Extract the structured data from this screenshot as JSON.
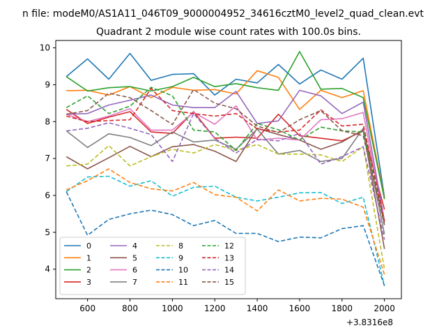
{
  "chart_data": {
    "type": "line",
    "suptitle": "n file: modeM0/AS1A11_046T09_9000004952_34616cztM0_level2_quad_clean.evt",
    "title": "Quadrant 2 module wise count rates with 100.0s bins.",
    "xlabel": "",
    "ylabel": "",
    "x_offset_label": "+3.8316e8",
    "xlim": [
      450,
      2080
    ],
    "ylim": [
      3.2,
      10.2
    ],
    "xticks": [
      600,
      800,
      1000,
      1200,
      1400,
      1600,
      1800,
      2000
    ],
    "yticks": [
      4,
      5,
      6,
      7,
      8,
      9,
      10
    ],
    "legend_position": "lower-left",
    "x": [
      500,
      600,
      700,
      800,
      900,
      1000,
      1100,
      1200,
      1300,
      1400,
      1500,
      1600,
      1700,
      1800,
      1900,
      2000
    ],
    "series": [
      {
        "name": "0",
        "color": "#1f77b4",
        "dash": "solid",
        "values": [
          9.22,
          9.7,
          9.15,
          9.85,
          9.12,
          9.28,
          9.3,
          8.72,
          9.15,
          9.05,
          9.55,
          9.02,
          9.4,
          9.15,
          9.72,
          5.95
        ]
      },
      {
        "name": "1",
        "color": "#ff7f0e",
        "dash": "solid",
        "values": [
          8.84,
          8.85,
          8.72,
          8.95,
          8.65,
          8.93,
          8.85,
          8.87,
          8.75,
          9.38,
          9.2,
          8.33,
          8.85,
          8.65,
          8.84,
          5.92
        ]
      },
      {
        "name": "2",
        "color": "#2ca02c",
        "dash": "solid",
        "values": [
          9.22,
          8.83,
          8.92,
          8.95,
          8.83,
          8.95,
          9.2,
          8.95,
          9.03,
          8.92,
          8.85,
          9.9,
          8.88,
          8.9,
          8.65,
          5.9
        ]
      },
      {
        "name": "3",
        "color": "#d62728",
        "dash": "solid",
        "values": [
          8.33,
          7.95,
          8.12,
          8.27,
          7.72,
          7.68,
          8.27,
          7.55,
          7.58,
          7.55,
          8.2,
          7.62,
          7.55,
          7.48,
          7.75,
          5.62
        ]
      },
      {
        "name": "4",
        "color": "#9467bd",
        "dash": "solid",
        "values": [
          8.2,
          8.22,
          8.45,
          8.58,
          8.72,
          8.45,
          8.38,
          8.38,
          8.82,
          7.95,
          8.02,
          8.85,
          8.7,
          8.22,
          8.53,
          5.3
        ]
      },
      {
        "name": "5",
        "color": "#8c564b",
        "dash": "solid",
        "values": [
          7.05,
          6.72,
          7.02,
          7.33,
          7.05,
          7.32,
          7.38,
          7.2,
          6.92,
          7.82,
          7.65,
          7.5,
          7.25,
          7.45,
          7.78,
          4.55
        ]
      },
      {
        "name": "6",
        "color": "#e377c2",
        "dash": "solid",
        "values": [
          8.2,
          8.0,
          8.15,
          8.35,
          7.77,
          7.77,
          8.25,
          7.93,
          8.43,
          7.5,
          7.55,
          7.5,
          8.05,
          8.08,
          8.25,
          5.2
        ]
      },
      {
        "name": "7",
        "color": "#7f7f7f",
        "dash": "solid",
        "values": [
          7.75,
          7.3,
          7.67,
          7.57,
          7.35,
          7.72,
          7.45,
          7.5,
          7.25,
          7.8,
          7.12,
          7.22,
          6.92,
          7.0,
          7.82,
          4.95
        ]
      },
      {
        "name": "8",
        "color": "#bcbd22",
        "dash": "dashed",
        "values": [
          6.8,
          6.85,
          7.35,
          6.8,
          7.05,
          7.25,
          7.15,
          7.38,
          7.22,
          7.38,
          7.12,
          7.12,
          7.1,
          6.92,
          7.32,
          4.0
        ]
      },
      {
        "name": "9",
        "color": "#17becf",
        "dash": "dashed",
        "values": [
          6.1,
          6.5,
          6.52,
          6.25,
          6.4,
          5.98,
          6.22,
          6.25,
          5.95,
          5.85,
          5.95,
          6.07,
          6.08,
          5.78,
          5.95,
          3.55
        ]
      },
      {
        "name": "10",
        "color": "#1f77b4",
        "dash": "dashed",
        "values": [
          6.1,
          4.92,
          5.35,
          5.5,
          5.6,
          5.48,
          5.18,
          5.32,
          4.97,
          4.97,
          4.75,
          4.87,
          4.85,
          5.1,
          5.18,
          3.55
        ]
      },
      {
        "name": "11",
        "color": "#ff7f0e",
        "dash": "dashed",
        "values": [
          6.15,
          6.4,
          6.72,
          6.35,
          6.18,
          6.12,
          6.35,
          6.02,
          5.95,
          5.58,
          6.15,
          5.85,
          5.92,
          5.9,
          5.68,
          3.85
        ]
      },
      {
        "name": "12",
        "color": "#2ca02c",
        "dash": "dashed",
        "values": [
          8.38,
          8.7,
          8.22,
          8.42,
          8.93,
          8.7,
          7.77,
          7.72,
          7.22,
          7.95,
          7.78,
          7.5,
          7.85,
          7.75,
          7.72,
          5.25
        ]
      },
      {
        "name": "13",
        "color": "#d62728",
        "dash": "dashed",
        "values": [
          8.15,
          8.0,
          8.03,
          8.05,
          8.9,
          8.3,
          8.22,
          8.15,
          8.22,
          7.8,
          7.72,
          7.77,
          8.32,
          7.88,
          7.93,
          5.3
        ]
      },
      {
        "name": "14",
        "color": "#9467bd",
        "dash": "dashed",
        "values": [
          7.75,
          7.82,
          7.97,
          7.82,
          7.65,
          6.92,
          8.22,
          7.55,
          7.15,
          7.52,
          7.48,
          7.68,
          6.85,
          7.05,
          7.32,
          4.8
        ]
      },
      {
        "name": "15",
        "color": "#8c564b",
        "dash": "dashed",
        "values": [
          8.2,
          8.3,
          8.77,
          8.65,
          8.3,
          7.92,
          8.87,
          8.5,
          8.35,
          7.88,
          7.7,
          8.05,
          8.3,
          7.75,
          7.62,
          5.2
        ]
      }
    ]
  }
}
